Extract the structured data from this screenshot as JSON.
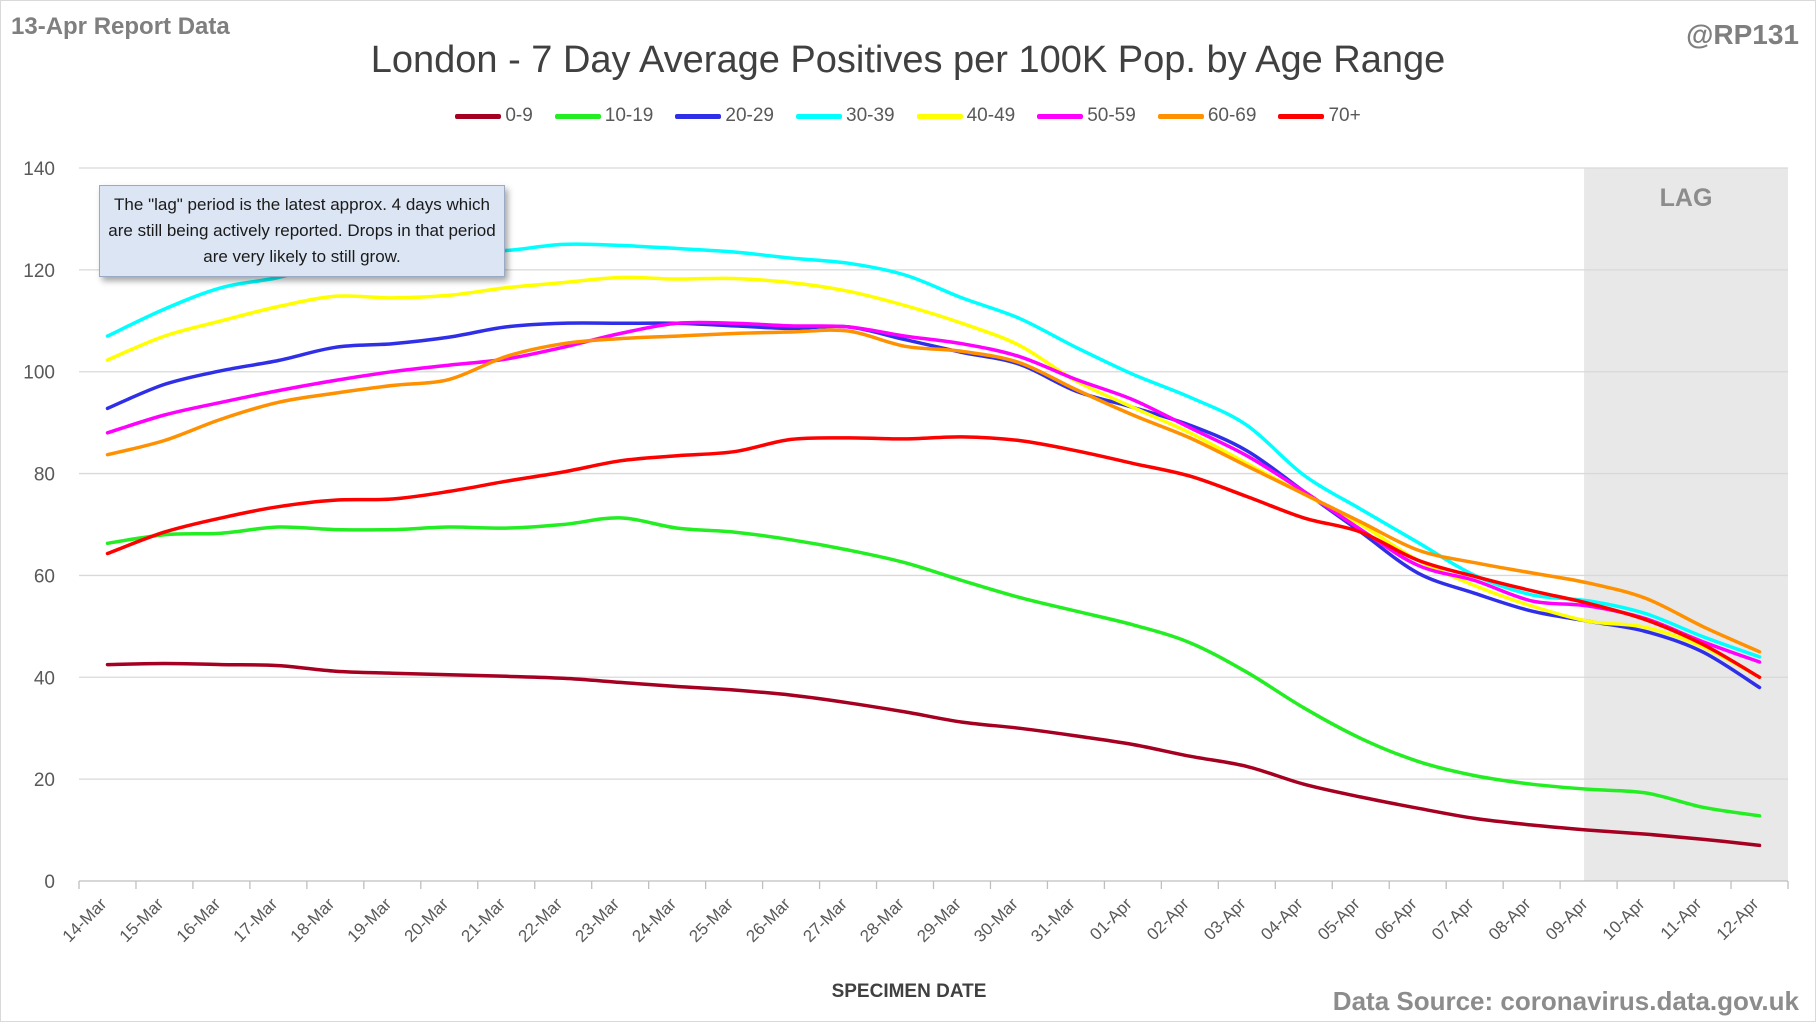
{
  "header": {
    "report_label": "13-Apr Report Data",
    "handle": "@RP131",
    "title": "London - 7 Day Average Positives per 100K Pop. by Age Range"
  },
  "annotation": {
    "note": "The \"lag\" period is the latest approx. 4 days which are still being actively reported. Drops in that period are very likely to still grow.",
    "lag_label": "LAG"
  },
  "footer": {
    "x_axis_title": "SPECIMEN DATE",
    "source": "Data Source: coronavirus.data.gov.uk"
  },
  "chart_data": {
    "type": "line",
    "title": "London - 7 Day Average Positives per 100K Pop. by Age Range",
    "xlabel": "SPECIMEN DATE",
    "ylabel": "",
    "ylim": [
      0,
      140
    ],
    "yticks": [
      0,
      20,
      40,
      60,
      80,
      100,
      120,
      140
    ],
    "grid": true,
    "legend_position": "top-center",
    "shaded_region": {
      "label": "LAG",
      "from": "09-Apr",
      "to": "12-Apr",
      "color": "#e8e8e8"
    },
    "x": [
      "14-Mar",
      "15-Mar",
      "16-Mar",
      "17-Mar",
      "18-Mar",
      "19-Mar",
      "20-Mar",
      "21-Mar",
      "22-Mar",
      "23-Mar",
      "24-Mar",
      "25-Mar",
      "26-Mar",
      "27-Mar",
      "28-Mar",
      "29-Mar",
      "30-Mar",
      "31-Mar",
      "01-Apr",
      "02-Apr",
      "03-Apr",
      "04-Apr",
      "05-Apr",
      "06-Apr",
      "07-Apr",
      "08-Apr",
      "09-Apr",
      "10-Apr",
      "11-Apr",
      "12-Apr"
    ],
    "series": [
      {
        "name": "0-9",
        "color": "#a50021",
        "values": [
          42.5,
          42.7,
          42.5,
          42.3,
          41.2,
          40.8,
          40.5,
          40.2,
          39.8,
          39,
          38.2,
          37.5,
          36.5,
          35,
          33.2,
          31.2,
          30,
          28.5,
          26.8,
          24.5,
          22.5,
          19,
          16.5,
          14.3,
          12.3,
          11,
          10,
          9.2,
          8.2,
          7
        ]
      },
      {
        "name": "10-19",
        "color": "#22ee22",
        "values": [
          66.3,
          68,
          68.3,
          69.5,
          69,
          69,
          69.5,
          69.3,
          70,
          71.3,
          69.3,
          68.5,
          67,
          65,
          62.5,
          59,
          55.7,
          53,
          50.3,
          46.8,
          41,
          34,
          28,
          23.5,
          20.7,
          19,
          18,
          17.3,
          14.5,
          12.8
        ]
      },
      {
        "name": "20-29",
        "color": "#2f2fe8",
        "values": [
          92.8,
          97.5,
          100.2,
          102.2,
          104.8,
          105.5,
          106.8,
          108.8,
          109.5,
          109.5,
          109.5,
          109,
          108.5,
          108.8,
          106.3,
          103.8,
          101.5,
          96.2,
          93,
          89.5,
          84.5,
          76.5,
          68.5,
          60.5,
          56.5,
          53,
          51,
          49,
          45,
          38
        ]
      },
      {
        "name": "30-39",
        "color": "#00ffff",
        "values": [
          107,
          112.3,
          116.5,
          118.5,
          121.5,
          123,
          123.5,
          123.8,
          125,
          124.8,
          124.2,
          123.5,
          122.3,
          121.3,
          119,
          114.5,
          110.5,
          104.8,
          99.5,
          95,
          89.5,
          79.7,
          73,
          66.5,
          60,
          56.2,
          55,
          52.5,
          48,
          44
        ]
      },
      {
        "name": "40-49",
        "color": "#ffff00",
        "values": [
          102.3,
          107,
          110,
          112.8,
          114.8,
          114.5,
          115,
          116.5,
          117.5,
          118.5,
          118.2,
          118.3,
          117.5,
          115.8,
          113,
          109.5,
          105.2,
          98.2,
          93,
          88,
          82,
          76,
          70,
          63,
          58,
          54,
          51,
          49.8,
          46,
          40
        ]
      },
      {
        "name": "50-59",
        "color": "#ff00ff",
        "values": [
          88,
          91.5,
          94,
          96.3,
          98.3,
          100,
          101.3,
          102.5,
          104.8,
          107.5,
          109.5,
          109.5,
          109,
          108.8,
          107,
          105.5,
          103,
          98.5,
          94.5,
          89,
          83.5,
          76.5,
          69,
          62,
          59,
          55,
          54,
          51.5,
          47,
          43
        ]
      },
      {
        "name": "60-69",
        "color": "#ff9000",
        "values": [
          83.7,
          86.5,
          90.7,
          94,
          95.8,
          97.3,
          98.5,
          103,
          105.5,
          106.5,
          107,
          107.5,
          107.8,
          108,
          105,
          104,
          101.8,
          96.5,
          91.5,
          87,
          81.5,
          76,
          70.5,
          65,
          62.5,
          60.5,
          58.5,
          55.5,
          50,
          45
        ]
      },
      {
        "name": "70+",
        "color": "#ff0000",
        "values": [
          64.3,
          68.5,
          71.3,
          73.5,
          74.8,
          75,
          76.5,
          78.5,
          80.3,
          82.5,
          83.5,
          84.3,
          86.7,
          87,
          86.8,
          87.2,
          86.5,
          84.5,
          82,
          79.5,
          75.5,
          71.3,
          68.5,
          63,
          59.8,
          57,
          54.5,
          51.3,
          46.5,
          40
        ]
      }
    ]
  }
}
